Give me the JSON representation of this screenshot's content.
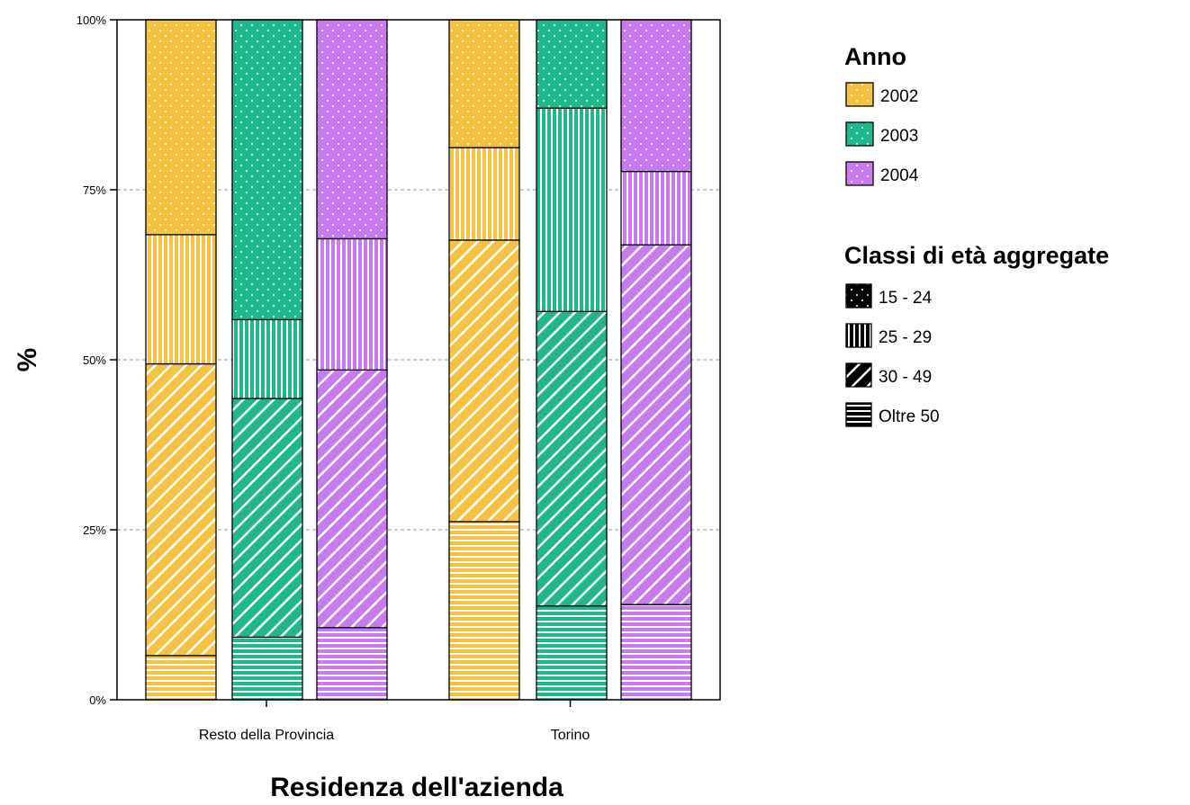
{
  "chart_data": {
    "type": "bar",
    "stacked": true,
    "percent_stacked": true,
    "xlabel": "Residenza dell'azienda",
    "ylabel": "%",
    "ylim": [
      0,
      100
    ],
    "yticks": [
      "0%",
      "25%",
      "50%",
      "75%",
      "100%"
    ],
    "ytick_values": [
      0,
      25,
      50,
      75,
      100
    ],
    "grid": "horizontal dashed",
    "legend_placement": "right",
    "categories": [
      "Resto della Provincia",
      "Torino"
    ],
    "legend_year": {
      "title": "Anno",
      "items": [
        {
          "label": "2002",
          "color": "#F5C242"
        },
        {
          "label": "2003",
          "color": "#1FB88C"
        },
        {
          "label": "2004",
          "color": "#C87AF0"
        }
      ]
    },
    "legend_age": {
      "title": "Classi di età aggregate",
      "items": [
        {
          "label": "15 - 24",
          "pattern": "dots"
        },
        {
          "label": "25 - 29",
          "pattern": "vertical"
        },
        {
          "label": "30 - 49",
          "pattern": "diagonal"
        },
        {
          "label": "Oltre 50",
          "pattern": "horizontal"
        }
      ]
    },
    "stack_order_bottom_to_top": [
      "Oltre 50",
      "30 - 49",
      "25 - 29",
      "15 - 24"
    ],
    "bars": [
      {
        "category": "Resto della Provincia",
        "year": "2002",
        "segments": {
          "Oltre 50": 6.5,
          "30 - 49": 42.9,
          "25 - 29": 19.0,
          "15 - 24": 31.6
        }
      },
      {
        "category": "Resto della Provincia",
        "year": "2003",
        "segments": {
          "Oltre 50": 9.2,
          "30 - 49": 35.1,
          "25 - 29": 11.6,
          "15 - 24": 44.1
        }
      },
      {
        "category": "Resto della Provincia",
        "year": "2004",
        "segments": {
          "Oltre 50": 10.6,
          "30 - 49": 37.9,
          "25 - 29": 19.3,
          "15 - 24": 32.2
        }
      },
      {
        "category": "Torino",
        "year": "2002",
        "segments": {
          "Oltre 50": 26.2,
          "30 - 49": 41.4,
          "25 - 29": 13.6,
          "15 - 24": 18.8
        }
      },
      {
        "category": "Torino",
        "year": "2003",
        "segments": {
          "Oltre 50": 13.8,
          "30 - 49": 43.3,
          "25 - 29": 29.9,
          "15 - 24": 13.0
        }
      },
      {
        "category": "Torino",
        "year": "2004",
        "segments": {
          "Oltre 50": 14.0,
          "30 - 49": 52.9,
          "25 - 29": 10.8,
          "15 - 24": 22.3
        }
      }
    ]
  }
}
